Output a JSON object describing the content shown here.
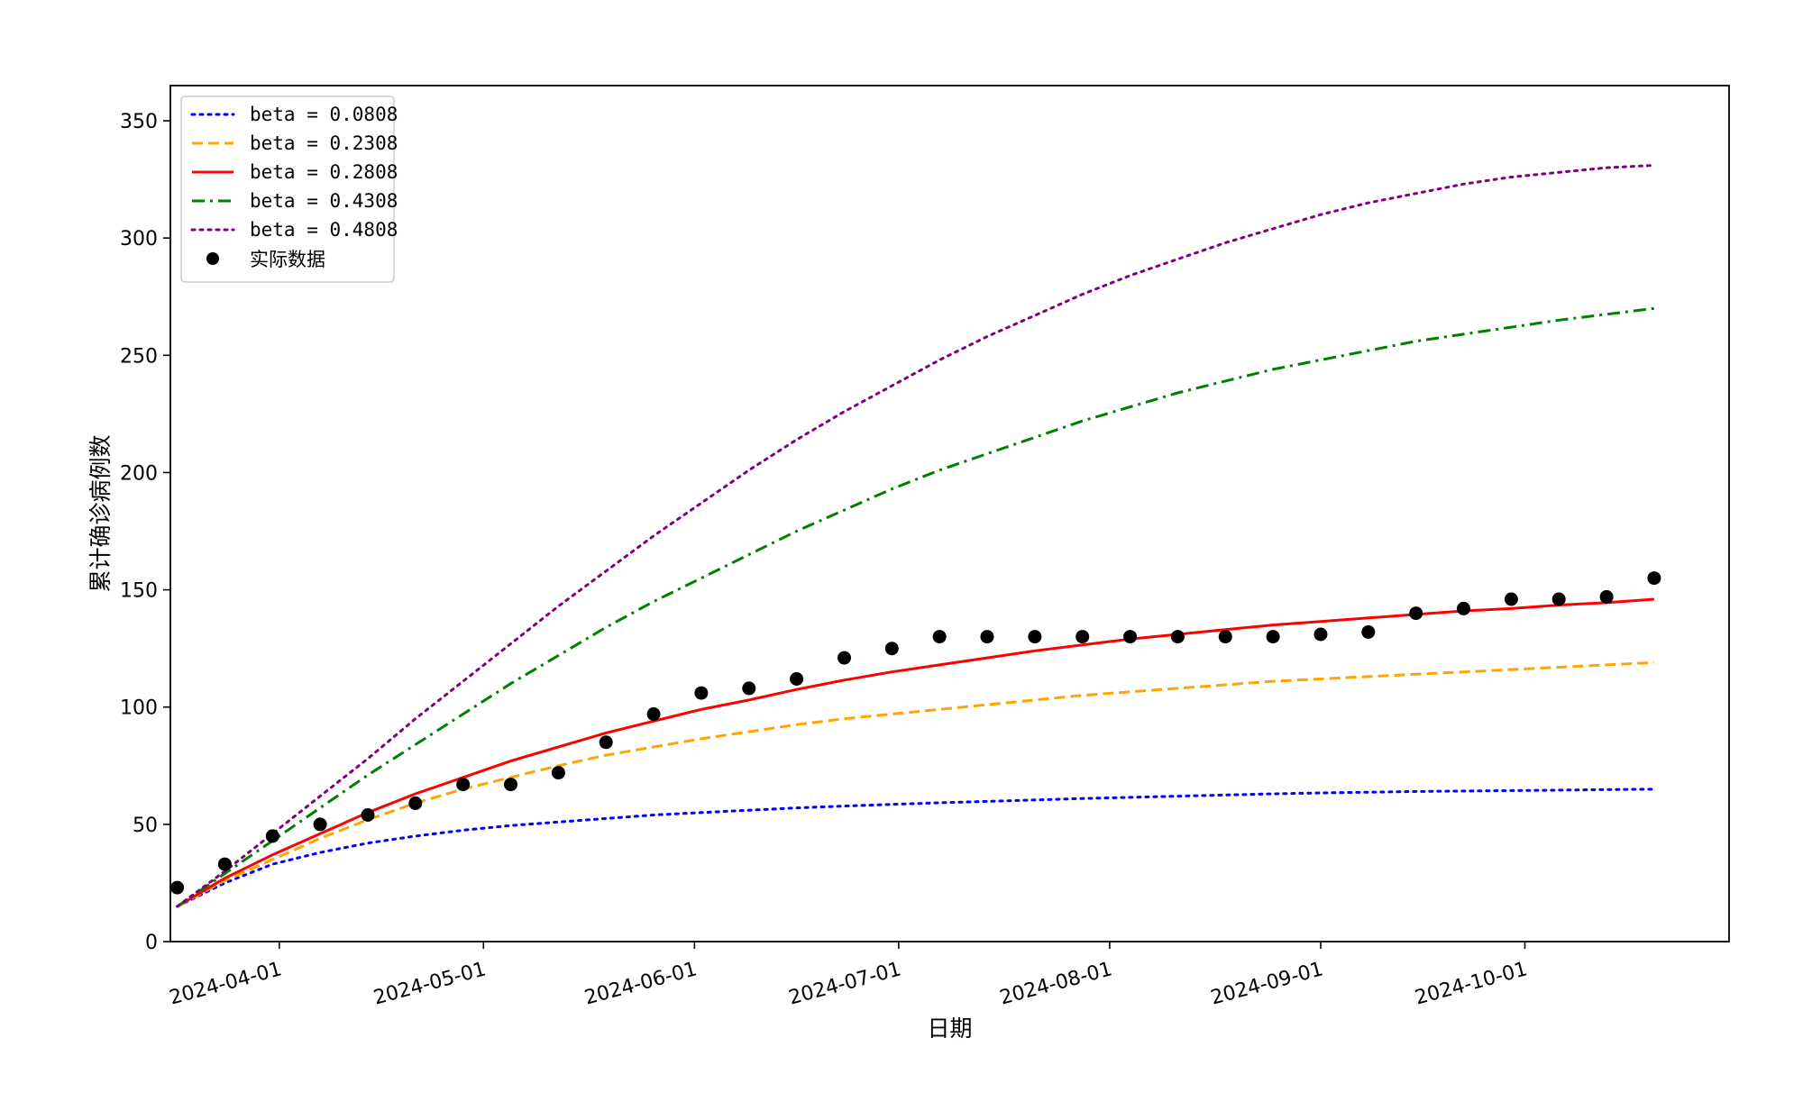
{
  "chart_data": {
    "type": "line",
    "title": "",
    "xlabel": "日期",
    "ylabel": "累计确诊病例数",
    "x_type": "date",
    "xlim": [
      "2024-03-16",
      "2024-10-31"
    ],
    "ylim": [
      0,
      365
    ],
    "grid": false,
    "legend_position": "top-left",
    "x_ticks": [
      "2024-04-01",
      "2024-05-01",
      "2024-06-01",
      "2024-07-01",
      "2024-08-01",
      "2024-09-01",
      "2024-10-01"
    ],
    "y_ticks": [
      0,
      50,
      100,
      150,
      200,
      250,
      300,
      350
    ],
    "x": [
      "2024-03-17",
      "2024-03-24",
      "2024-03-31",
      "2024-04-07",
      "2024-04-14",
      "2024-04-21",
      "2024-04-28",
      "2024-05-05",
      "2024-05-12",
      "2024-05-19",
      "2024-05-26",
      "2024-06-02",
      "2024-06-09",
      "2024-06-16",
      "2024-06-23",
      "2024-06-30",
      "2024-07-07",
      "2024-07-14",
      "2024-07-21",
      "2024-07-28",
      "2024-08-04",
      "2024-08-11",
      "2024-08-18",
      "2024-08-25",
      "2024-09-01",
      "2024-09-08",
      "2024-09-15",
      "2024-09-22",
      "2024-09-29",
      "2024-10-06",
      "2024-10-13",
      "2024-10-20"
    ],
    "series": [
      {
        "name": "beta = 0.0808",
        "color": "#0000ff",
        "style": "dotted",
        "values": [
          15,
          25,
          33,
          38,
          42,
          45,
          47.5,
          49.5,
          51,
          52.5,
          54,
          55,
          56,
          57,
          57.8,
          58.5,
          59.2,
          59.8,
          60.4,
          61,
          61.5,
          62,
          62.5,
          63,
          63.4,
          63.7,
          64,
          64.2,
          64.4,
          64.6,
          64.8,
          65
        ]
      },
      {
        "name": "beta = 0.2308",
        "color": "#ffa500",
        "style": "dashed",
        "values": [
          15,
          26,
          35,
          44,
          52,
          59,
          65,
          70,
          75,
          79.5,
          83,
          86.5,
          89.5,
          92.5,
          95,
          97,
          99,
          101,
          103,
          105,
          106.5,
          108,
          109.5,
          111,
          112,
          113,
          114,
          115,
          116,
          117,
          118,
          119
        ]
      },
      {
        "name": "beta = 0.2808",
        "color": "#ff0000",
        "style": "solid",
        "values": [
          15,
          27,
          37,
          46,
          55,
          63,
          70,
          77,
          83,
          89,
          94,
          99,
          103,
          107.5,
          111.5,
          115,
          118,
          121,
          124,
          126.5,
          129,
          131,
          133,
          135,
          136.5,
          138,
          139.5,
          141,
          142,
          143.5,
          144.5,
          146
        ]
      },
      {
        "name": "beta = 0.4308",
        "color": "#008000",
        "style": "dashdot",
        "values": [
          15,
          29,
          43,
          57,
          71,
          84,
          97,
          110,
          122,
          134,
          145,
          155,
          165,
          175,
          184,
          193,
          201,
          208,
          215,
          222,
          228,
          234,
          239,
          244,
          248,
          252,
          256,
          259,
          262,
          265,
          267.5,
          270
        ]
      },
      {
        "name": "beta = 0.4808",
        "color": "#800080",
        "style": "dotted",
        "values": [
          15,
          30,
          46,
          62,
          78,
          95,
          111,
          127,
          143,
          158,
          173,
          187,
          201,
          214,
          226,
          237,
          248,
          258,
          267,
          276,
          284,
          291,
          298,
          304,
          310,
          315,
          319,
          323,
          326,
          328,
          330,
          331
        ]
      }
    ],
    "scatter": {
      "name": "实际数据",
      "color": "#000000",
      "points": [
        {
          "x": "2024-03-17",
          "y": 23
        },
        {
          "x": "2024-03-24",
          "y": 33
        },
        {
          "x": "2024-03-31",
          "y": 45
        },
        {
          "x": "2024-04-07",
          "y": 50
        },
        {
          "x": "2024-04-14",
          "y": 54
        },
        {
          "x": "2024-04-21",
          "y": 59
        },
        {
          "x": "2024-04-28",
          "y": 67
        },
        {
          "x": "2024-05-05",
          "y": 67
        },
        {
          "x": "2024-05-12",
          "y": 72
        },
        {
          "x": "2024-05-19",
          "y": 85
        },
        {
          "x": "2024-05-26",
          "y": 97
        },
        {
          "x": "2024-06-02",
          "y": 106
        },
        {
          "x": "2024-06-09",
          "y": 108
        },
        {
          "x": "2024-06-16",
          "y": 112
        },
        {
          "x": "2024-06-23",
          "y": 121
        },
        {
          "x": "2024-06-30",
          "y": 125
        },
        {
          "x": "2024-07-07",
          "y": 130
        },
        {
          "x": "2024-07-14",
          "y": 130
        },
        {
          "x": "2024-07-21",
          "y": 130
        },
        {
          "x": "2024-07-28",
          "y": 130
        },
        {
          "x": "2024-08-04",
          "y": 130
        },
        {
          "x": "2024-08-11",
          "y": 130
        },
        {
          "x": "2024-08-18",
          "y": 130
        },
        {
          "x": "2024-08-25",
          "y": 130
        },
        {
          "x": "2024-09-01",
          "y": 131
        },
        {
          "x": "2024-09-08",
          "y": 132
        },
        {
          "x": "2024-09-15",
          "y": 140
        },
        {
          "x": "2024-09-22",
          "y": 142
        },
        {
          "x": "2024-09-29",
          "y": 146
        },
        {
          "x": "2024-10-06",
          "y": 146
        },
        {
          "x": "2024-10-13",
          "y": 147
        },
        {
          "x": "2024-10-20",
          "y": 155
        }
      ]
    }
  }
}
